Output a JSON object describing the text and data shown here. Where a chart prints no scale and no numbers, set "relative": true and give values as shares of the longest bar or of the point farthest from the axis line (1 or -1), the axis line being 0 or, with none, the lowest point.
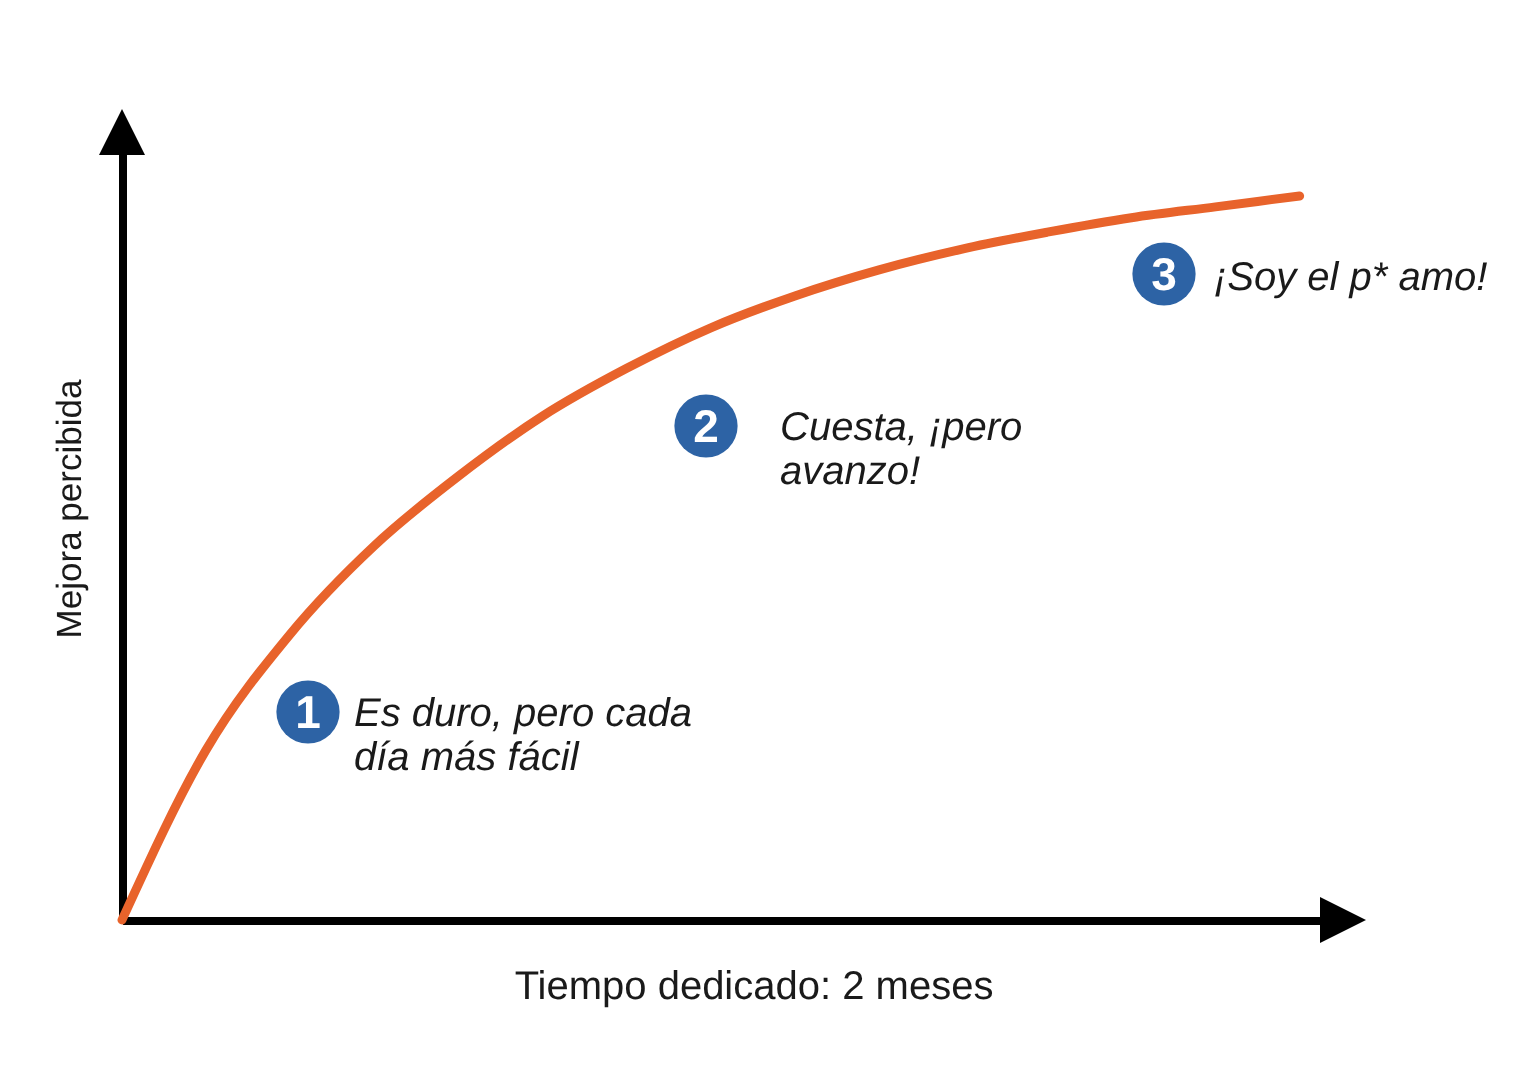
{
  "chart_data": {
    "type": "line",
    "relative": true,
    "xlabel": "Tiempo dedicado: 2 meses",
    "ylabel": "Mejora percibida",
    "tick_labels": false,
    "categories": [
      null,
      null,
      null,
      null,
      null,
      null,
      null,
      null,
      null,
      null,
      null,
      null,
      null,
      null,
      null
    ],
    "values": [
      0,
      0.235,
      0.395,
      0.517,
      0.613,
      0.696,
      0.762,
      0.818,
      0.862,
      0.898,
      0.927,
      0.95,
      0.97,
      0.985,
      1
    ],
    "color": "#e8632b",
    "annotations": [
      "1",
      "Es duro, pero cada día más fácil",
      "2",
      "Cuesta, ¡pero avanzo!",
      "3",
      "¡Soy el p* amo!"
    ]
  }
}
